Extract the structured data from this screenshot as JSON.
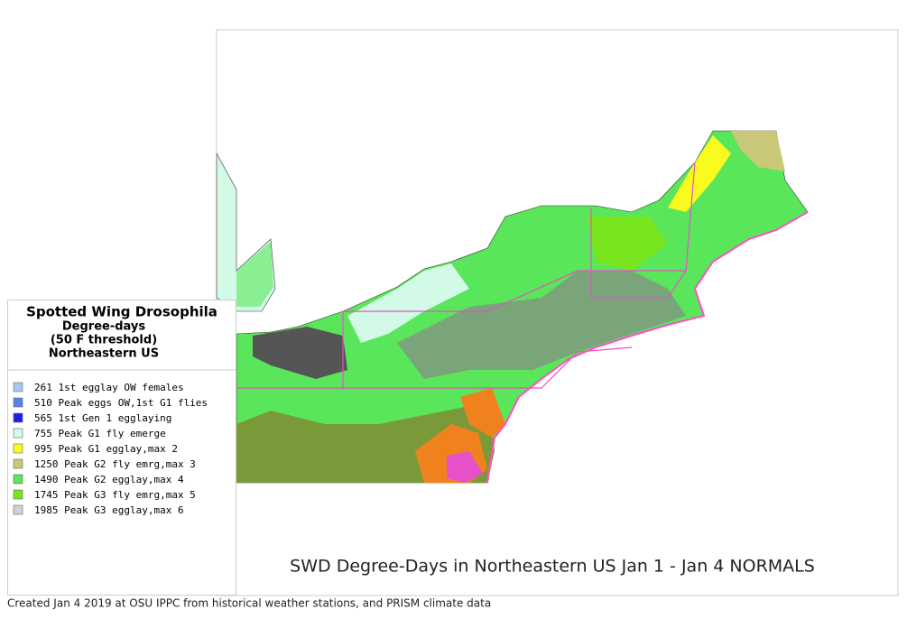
{
  "legend": {
    "title": "Spotted Wing Drosophila",
    "subtitle_lines": [
      "Degree-days",
      "(50 F threshold)",
      "Northeastern US"
    ],
    "items": [
      {
        "label": "261 1st egglay OW females",
        "color": "#a6c8f0"
      },
      {
        "label": "510 Peak eggs OW,1st G1 flies",
        "color": "#5a82e6"
      },
      {
        "label": "565 1st Gen 1 egglaying",
        "color": "#1e1ee6"
      },
      {
        "label": "755 Peak G1 fly emerge",
        "color": "#d2fae6"
      },
      {
        "label": "995 Peak G1 egglay,max 2",
        "color": "#fafa1e"
      },
      {
        "label": "1250 Peak G2 fly emrg,max 3",
        "color": "#c8c878"
      },
      {
        "label": "1490 Peak G2 egglay,max 4",
        "color": "#5ae65a"
      },
      {
        "label": "1745 Peak G3 fly emrg,max 5",
        "color": "#78e61e"
      },
      {
        "label": "1985 Peak G3 egglay,max 6",
        "color": "#d2d2d2"
      }
    ]
  },
  "caption": "SWD Degree-Days in Northeastern US Jan 1 - Jan 4 NORMALS",
  "footer": "Created Jan 4 2019 at OSU IPPC from  historical weather stations, and PRISM climate data"
}
